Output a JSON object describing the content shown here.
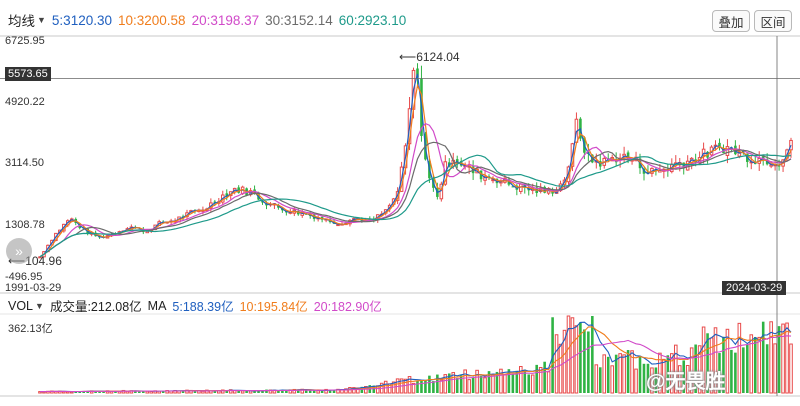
{
  "legend": {
    "dropdown_label": "均线",
    "ma": [
      {
        "label": "5:3120.30",
        "color": "#1f5fbf"
      },
      {
        "label": "10:3200.58",
        "color": "#f07d1c"
      },
      {
        "label": "20:3198.37",
        "color": "#d14ac9"
      },
      {
        "label": "30:3152.14",
        "color": "#6b6b6b"
      },
      {
        "label": "60:2923.10",
        "color": "#1e9a8a"
      }
    ]
  },
  "buttons": {
    "overlay": "叠加",
    "interval": "区间"
  },
  "price_axis": {
    "top": "6725.95",
    "crosshair": "5573.65",
    "l1": "4920.22",
    "l2": "3114.50",
    "l3": "1308.78",
    "bottom": "-496.95"
  },
  "annotations": {
    "high": "6124.04",
    "low": "104.96"
  },
  "dates": {
    "start": "1991-03-29",
    "cursor": "2024-03-29"
  },
  "volume": {
    "dropdown_label": "VOL",
    "turnover": "成交量:212.08亿",
    "ma_label": "MA",
    "ma": [
      {
        "label": "5:188.39亿",
        "color": "#1f5fbf"
      },
      {
        "label": "10:195.84亿",
        "color": "#f07d1c"
      },
      {
        "label": "20:182.90亿",
        "color": "#d14ac9"
      }
    ],
    "max": "362.13亿"
  },
  "watermark": "@无畏胜",
  "colors": {
    "up": "#e84a4a",
    "down": "#2fb344",
    "axis": "#c9c9c9",
    "crosshair": "#666666"
  },
  "chart_data": {
    "type": "candlestick",
    "x_range": [
      "1991-03-29",
      "2024-03-29"
    ],
    "ylim": [
      -496.95,
      6725.95
    ],
    "y_ticks": [
      6725.95,
      4920.22,
      3114.5,
      1308.78,
      -496.95
    ],
    "high": 6124.04,
    "low": 104.96,
    "crosshair_price": 5573.65,
    "close_path": [
      [
        0,
        110
      ],
      [
        0.02,
        800
      ],
      [
        0.04,
        1300
      ],
      [
        0.06,
        900
      ],
      [
        0.08,
        700
      ],
      [
        0.1,
        850
      ],
      [
        0.12,
        1050
      ],
      [
        0.14,
        900
      ],
      [
        0.16,
        1150
      ],
      [
        0.18,
        1250
      ],
      [
        0.2,
        1450
      ],
      [
        0.22,
        1600
      ],
      [
        0.24,
        1950
      ],
      [
        0.26,
        2200
      ],
      [
        0.28,
        2100
      ],
      [
        0.3,
        1800
      ],
      [
        0.32,
        1600
      ],
      [
        0.34,
        1500
      ],
      [
        0.36,
        1400
      ],
      [
        0.38,
        1250
      ],
      [
        0.4,
        1150
      ],
      [
        0.42,
        1300
      ],
      [
        0.44,
        1200
      ],
      [
        0.46,
        1500
      ],
      [
        0.475,
        2000
      ],
      [
        0.485,
        3100
      ],
      [
        0.492,
        4500
      ],
      [
        0.497,
        5800
      ],
      [
        0.5,
        6000
      ],
      [
        0.505,
        4800
      ],
      [
        0.51,
        3500
      ],
      [
        0.52,
        2300
      ],
      [
        0.53,
        2000
      ],
      [
        0.54,
        2900
      ],
      [
        0.55,
        3200
      ],
      [
        0.57,
        2800
      ],
      [
        0.59,
        2600
      ],
      [
        0.61,
        2500
      ],
      [
        0.63,
        2300
      ],
      [
        0.65,
        2200
      ],
      [
        0.67,
        2100
      ],
      [
        0.69,
        2200
      ],
      [
        0.7,
        2600
      ],
      [
        0.71,
        3500
      ],
      [
        0.715,
        4300
      ],
      [
        0.72,
        3800
      ],
      [
        0.73,
        3100
      ],
      [
        0.75,
        3000
      ],
      [
        0.77,
        3200
      ],
      [
        0.79,
        3100
      ],
      [
        0.81,
        2700
      ],
      [
        0.83,
        2800
      ],
      [
        0.85,
        3000
      ],
      [
        0.87,
        3100
      ],
      [
        0.89,
        3300
      ],
      [
        0.91,
        3500
      ],
      [
        0.93,
        3300
      ],
      [
        0.95,
        3150
      ],
      [
        0.97,
        3100
      ],
      [
        0.985,
        3050
      ],
      [
        1.0,
        3700
      ]
    ],
    "volume": {
      "max": 362.13,
      "unit": "亿",
      "current": 212.08,
      "ma": {
        "5": 188.39,
        "10": 195.84,
        "20": 182.9
      }
    }
  }
}
